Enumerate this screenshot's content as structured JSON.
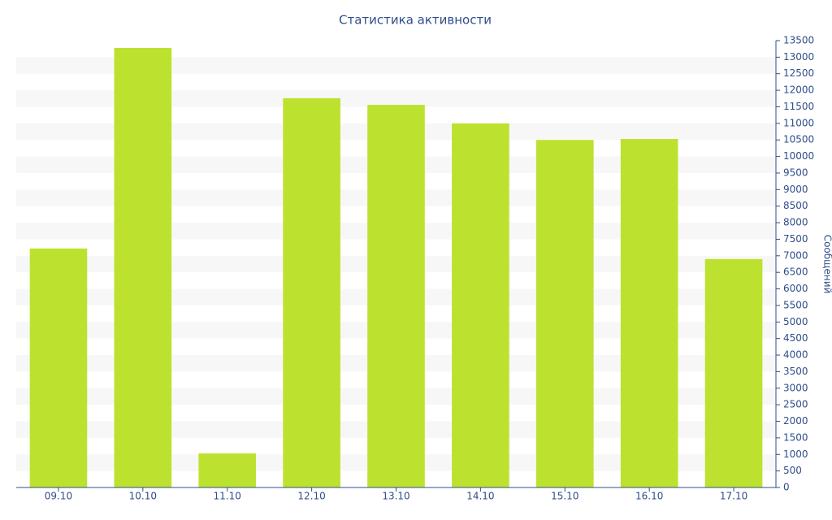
{
  "chart_data": {
    "type": "bar",
    "title": "Статистика активности",
    "y_label": "Сообщений",
    "categories": [
      "09.10",
      "10.10",
      "11.10",
      "12.10",
      "13.10",
      "14.10",
      "15.10",
      "16.10",
      "17.10"
    ],
    "values": [
      7220,
      13280,
      1030,
      11760,
      11560,
      11000,
      10500,
      10530,
      6900
    ],
    "color": "#bce22f",
    "ylim": [
      0,
      13500
    ],
    "yticks": [
      0,
      500,
      1000,
      1500,
      2000,
      2500,
      3000,
      3500,
      4000,
      4500,
      5000,
      5500,
      6000,
      6500,
      7000,
      7500,
      8000,
      8500,
      9000,
      9500,
      10000,
      10500,
      11000,
      11500,
      12000,
      12500,
      13000,
      13500
    ],
    "grid": "striped",
    "y_axis_side": "right"
  }
}
